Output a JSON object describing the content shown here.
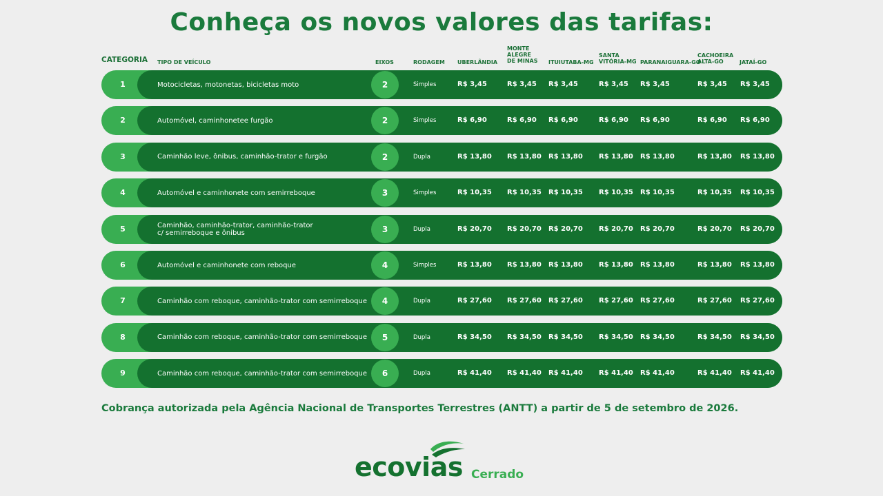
{
  "title": "Conheça os novos valores das tarifas:",
  "headers": {
    "categoria": "CATEGORIA",
    "tipo": "TIPO DE VEÍCULO",
    "eixos": "EIXOS",
    "rodagem": "RODAGEM",
    "uberlandia": "UBERLÂNDIA",
    "monte_alegre": "MONTE\nALEGRE\nDE MINAS",
    "ituiutaba": "ITUIUTABA-MG",
    "santa_vitoria": "SANTA\nVITÓRIA-MG",
    "paranaiguara": "PARANAIGUARA-GO",
    "cachoeira_alta": "CACHOEIRA\nALTA-GO",
    "jatai": "JATAÍ-GO"
  },
  "rows": [
    {
      "cat": "1",
      "tipo": "Motocicletas, motonetas, bicicletas moto",
      "eixos": "2",
      "rodagem": "Simples",
      "prices": [
        "R$ 3,45",
        "R$ 3,45",
        "R$ 3,45",
        "R$ 3,45",
        "R$ 3,45",
        "R$ 3,45",
        "R$ 3,45"
      ]
    },
    {
      "cat": "2",
      "tipo": "Automóvel, caminhonetee furgão",
      "eixos": "2",
      "rodagem": "Simples",
      "prices": [
        "R$ 6,90",
        "R$ 6,90",
        "R$ 6,90",
        "R$ 6,90",
        "R$ 6,90",
        "R$ 6,90",
        "R$ 6,90"
      ]
    },
    {
      "cat": "3",
      "tipo": "Caminhão leve, ônibus, caminhão-trator e furgão",
      "eixos": "2",
      "rodagem": "Dupla",
      "prices": [
        "R$ 13,80",
        "R$ 13,80",
        "R$ 13,80",
        "R$ 13,80",
        "R$ 13,80",
        "R$ 13,80",
        "R$ 13,80"
      ]
    },
    {
      "cat": "4",
      "tipo": "Automóvel e caminhonete com semirreboque",
      "eixos": "3",
      "rodagem": "Simples",
      "prices": [
        "R$ 10,35",
        "R$ 10,35",
        "R$ 10,35",
        "R$ 10,35",
        "R$ 10,35",
        "R$ 10,35",
        "R$ 10,35"
      ]
    },
    {
      "cat": "5",
      "tipo": "Caminhão, caminhão-trator, caminhão-trator\nc/ semirreboque e ônibus",
      "eixos": "3",
      "rodagem": "Dupla",
      "prices": [
        "R$ 20,70",
        "R$ 20,70",
        "R$ 20,70",
        "R$ 20,70",
        "R$ 20,70",
        "R$ 20,70",
        "R$ 20,70"
      ]
    },
    {
      "cat": "6",
      "tipo": "Automóvel e caminhonete  com reboque",
      "eixos": "4",
      "rodagem": "Simples",
      "prices": [
        "R$ 13,80",
        "R$ 13,80",
        "R$ 13,80",
        "R$ 13,80",
        "R$ 13,80",
        "R$ 13,80",
        "R$ 13,80"
      ]
    },
    {
      "cat": "7",
      "tipo": "Caminhão com reboque, caminhão-trator com semirreboque",
      "eixos": "4",
      "rodagem": "Dupla",
      "prices": [
        "R$ 27,60",
        "R$ 27,60",
        "R$ 27,60",
        "R$ 27,60",
        "R$ 27,60",
        "R$ 27,60",
        "R$ 27,60"
      ]
    },
    {
      "cat": "8",
      "tipo": "Caminhão com reboque, caminhão-trator com semirreboque",
      "eixos": "5",
      "rodagem": "Dupla",
      "prices": [
        "R$ 34,50",
        "R$ 34,50",
        "R$ 34,50",
        "R$ 34,50",
        "R$ 34,50",
        "R$ 34,50",
        "R$ 34,50"
      ]
    },
    {
      "cat": "9",
      "tipo": "Caminhão com reboque, caminhão-trator com semirreboque",
      "eixos": "6",
      "rodagem": "Dupla",
      "prices": [
        "R$ 41,40",
        "R$ 41,40",
        "R$ 41,40",
        "R$ 41,40",
        "R$ 41,40",
        "R$ 41,40",
        "R$ 41,40"
      ]
    }
  ],
  "note": "Cobrança autorizada pela Agência Nacional de Transportes Terrestres (ANTT) a partir de 5 de setembro de 2026.",
  "logo": {
    "word": "ecovias",
    "sub": "Cerrado"
  },
  "colors": {
    "dark_green": "#14712f",
    "light_green": "#39ae52",
    "title_green": "#1a7a3c",
    "background": "#eeeeee"
  }
}
